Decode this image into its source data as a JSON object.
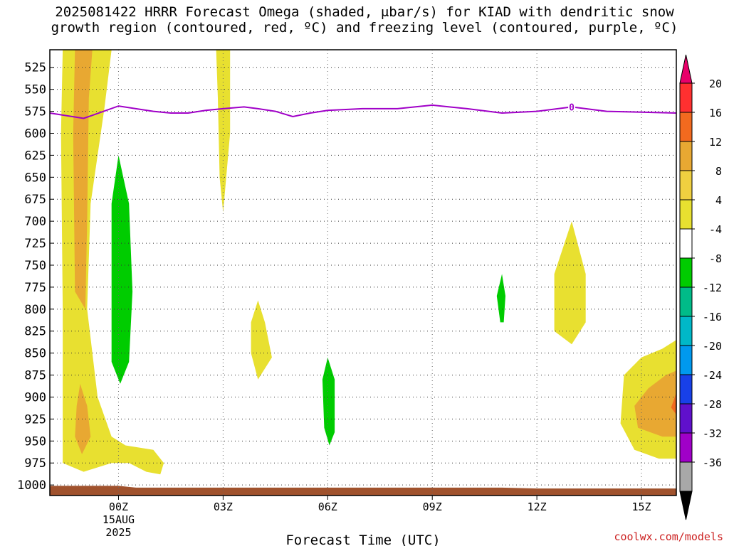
{
  "title_line1": "2025081422 HRRR Forecast Omega (shaded, μbar/s) for KIAD with dendritic snow",
  "title_line2": "growth region (contoured, red, ºC) and freezing level (contoured, purple, ºC)",
  "credit": "coolwx.com/models",
  "chart_data": {
    "type": "contour",
    "title": "2025081422 HRRR Forecast Omega (shaded, μbar/s) for KIAD with dendritic snow growth region (contoured, red, ºC) and freezing level (contoured, purple, ºC)",
    "xlabel": "Forecast Time (UTC)",
    "ylabel": "",
    "x_unit": "hours from 2025081422",
    "xlim": [
      -1.97,
      16.0
    ],
    "ylim": [
      505,
      1012
    ],
    "y_inverted": true,
    "x_ticks": [
      {
        "x": 0,
        "label": "00Z",
        "sub1": "15AUG",
        "sub2": "2025"
      },
      {
        "x": 3,
        "label": "03Z"
      },
      {
        "x": 6,
        "label": "06Z"
      },
      {
        "x": 9,
        "label": "09Z"
      },
      {
        "x": 12,
        "label": "12Z"
      },
      {
        "x": 15,
        "label": "15Z"
      }
    ],
    "y_ticks": [
      525,
      550,
      575,
      600,
      625,
      650,
      675,
      700,
      725,
      750,
      775,
      800,
      825,
      850,
      875,
      900,
      925,
      950,
      975,
      1000
    ],
    "grid": true,
    "colorbar": {
      "levels": [
        "20",
        "16",
        "12",
        "8",
        "4",
        "-4",
        "-8",
        "-12",
        "-16",
        "-20",
        "-24",
        "-28",
        "-32",
        "-36"
      ],
      "colors": [
        "#e8006a",
        "#ff3030",
        "#f26a1f",
        "#e8a832",
        "#f0d040",
        "#e8e030",
        "#ffffff",
        "#00cc00",
        "#00bb88",
        "#00b8c8",
        "#0099ee",
        "#1840e8",
        "#6010cc",
        "#a000c8",
        "#a8a8a8",
        "#000000"
      ]
    },
    "freezing_level": {
      "label": "0",
      "color": "#a000c8",
      "x": [
        -1.97,
        -1,
        0,
        1,
        1.5,
        2,
        2.5,
        3,
        3.6,
        4,
        4.5,
        5,
        5.5,
        6,
        7,
        8,
        9,
        10,
        11,
        12,
        13,
        14,
        15,
        16
      ],
      "y": [
        577,
        583,
        569,
        575,
        577,
        577,
        574,
        572,
        570,
        572,
        575,
        581,
        577,
        574,
        572,
        572,
        568,
        572,
        577,
        575,
        570,
        575,
        576,
        577
      ]
    },
    "shaded_regions": [
      {
        "level": "4 to 8",
        "color": "#e8e030",
        "poly": [
          [
            -1.6,
            505
          ],
          [
            -0.2,
            505
          ],
          [
            -0.4,
            570
          ],
          [
            -0.8,
            680
          ],
          [
            -0.9,
            800
          ],
          [
            -0.6,
            900
          ],
          [
            -0.2,
            945
          ],
          [
            0.2,
            955
          ],
          [
            1,
            960
          ],
          [
            1.3,
            975
          ],
          [
            1.2,
            988
          ],
          [
            0.8,
            985
          ],
          [
            0.3,
            975
          ],
          [
            -0.2,
            975
          ],
          [
            -1,
            985
          ],
          [
            -1.6,
            975
          ],
          [
            -1.6,
            800
          ],
          [
            -1.65,
            600
          ]
        ]
      },
      {
        "level": "8 to 12",
        "color": "#e8a832",
        "poly": [
          [
            -1.25,
            505
          ],
          [
            -0.75,
            505
          ],
          [
            -0.85,
            560
          ],
          [
            -0.9,
            700
          ],
          [
            -0.95,
            800
          ],
          [
            -1.25,
            780
          ],
          [
            -1.3,
            600
          ]
        ]
      },
      {
        "level": "8 to 12",
        "color": "#e8a832",
        "poly": [
          [
            -1.1,
            885
          ],
          [
            -0.9,
            910
          ],
          [
            -0.8,
            945
          ],
          [
            -1.05,
            965
          ],
          [
            -1.25,
            945
          ],
          [
            -1.2,
            910
          ]
        ]
      },
      {
        "level": "4 to 8",
        "color": "#e8e030",
        "poly": [
          [
            2.8,
            505
          ],
          [
            3.2,
            505
          ],
          [
            3.2,
            600
          ],
          [
            3.0,
            690
          ],
          [
            2.9,
            650
          ],
          [
            2.85,
            560
          ]
        ]
      },
      {
        "level": "4 to 8",
        "color": "#e8e030",
        "poly": [
          [
            4.0,
            790
          ],
          [
            4.2,
            815
          ],
          [
            4.4,
            855
          ],
          [
            4.0,
            880
          ],
          [
            3.8,
            850
          ],
          [
            3.8,
            815
          ]
        ]
      },
      {
        "level": "4 to 8",
        "color": "#e8e030",
        "poly": [
          [
            13.0,
            700
          ],
          [
            13.4,
            760
          ],
          [
            13.4,
            815
          ],
          [
            13.0,
            840
          ],
          [
            12.5,
            825
          ],
          [
            12.5,
            760
          ]
        ]
      },
      {
        "level": "4 to 8",
        "color": "#e8e030",
        "poly": [
          [
            16.0,
            835
          ],
          [
            16.0,
            970
          ],
          [
            15.5,
            970
          ],
          [
            14.8,
            960
          ],
          [
            14.4,
            930
          ],
          [
            14.5,
            875
          ],
          [
            15.0,
            855
          ],
          [
            15.6,
            845
          ]
        ]
      },
      {
        "level": "8 to 12",
        "color": "#e8a832",
        "poly": [
          [
            16.0,
            870
          ],
          [
            16.0,
            945
          ],
          [
            15.6,
            945
          ],
          [
            14.9,
            935
          ],
          [
            14.8,
            910
          ],
          [
            15.2,
            890
          ],
          [
            15.7,
            875
          ]
        ]
      },
      {
        "level": "12 to 16",
        "color": "#f26a1f",
        "poly": [
          [
            16.0,
            895
          ],
          [
            16.0,
            920
          ],
          [
            15.85,
            912
          ]
        ]
      },
      {
        "level": "-4 to -8",
        "color": "#00cc00",
        "poly": [
          [
            0.0,
            625
          ],
          [
            0.3,
            680
          ],
          [
            0.4,
            780
          ],
          [
            0.3,
            860
          ],
          [
            0.05,
            885
          ],
          [
            -0.2,
            860
          ],
          [
            -0.2,
            780
          ],
          [
            -0.2,
            680
          ]
        ]
      },
      {
        "level": "-4 to -8",
        "color": "#00cc00",
        "poly": [
          [
            6.0,
            855
          ],
          [
            6.2,
            880
          ],
          [
            6.2,
            940
          ],
          [
            6.05,
            955
          ],
          [
            5.9,
            935
          ],
          [
            5.85,
            880
          ]
        ]
      },
      {
        "level": "-4 to -8",
        "color": "#00cc00",
        "poly": [
          [
            11.0,
            760
          ],
          [
            11.1,
            785
          ],
          [
            11.05,
            815
          ],
          [
            10.95,
            815
          ],
          [
            10.85,
            785
          ]
        ]
      },
      {
        "level": "terrain",
        "color": "#a0522d",
        "poly": [
          [
            -1.97,
            1001
          ],
          [
            0.0,
            1001
          ],
          [
            0.5,
            1003
          ],
          [
            1.0,
            1003
          ],
          [
            8.0,
            1003
          ],
          [
            11.0,
            1003
          ],
          [
            12.0,
            1004
          ],
          [
            16.0,
            1004
          ],
          [
            16.0,
            1012
          ],
          [
            -1.97,
            1012
          ]
        ]
      }
    ]
  }
}
